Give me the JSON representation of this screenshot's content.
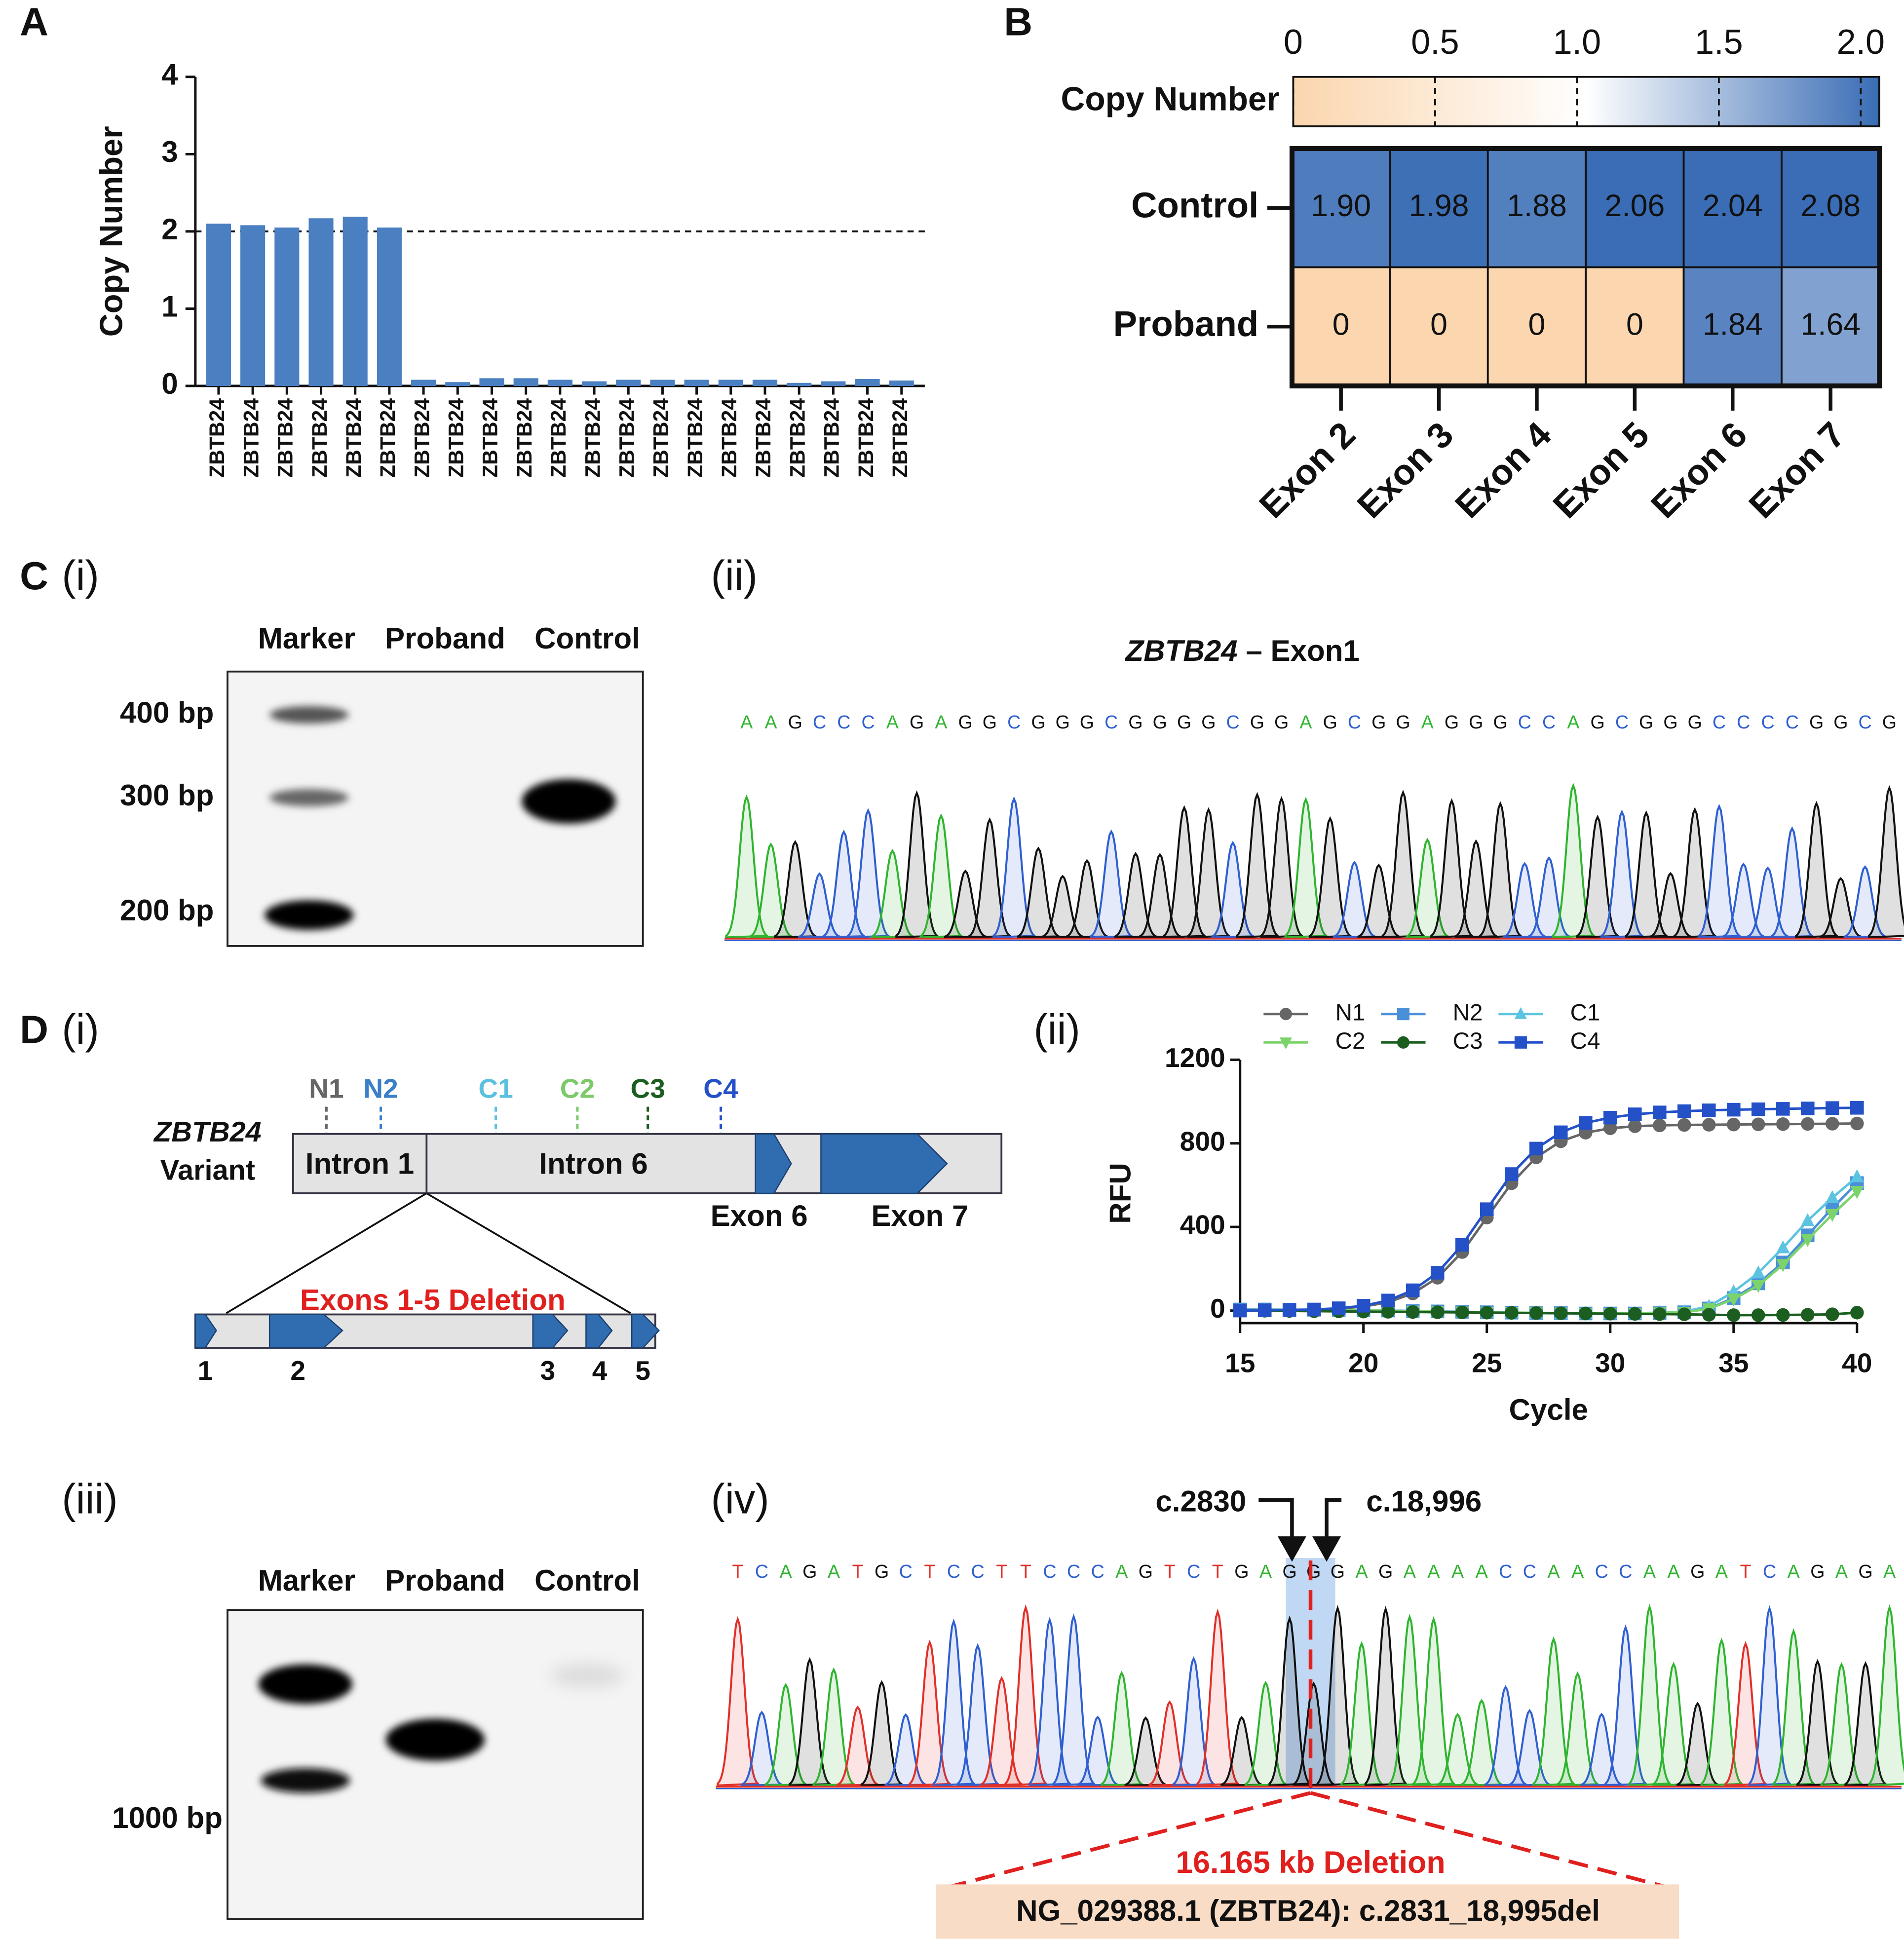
{
  "panel_labels": [
    "A",
    "B",
    "C",
    "D"
  ],
  "chart_data": [
    {
      "type": "bar",
      "ylabel": "Copy Number",
      "categories": [
        "ZBTB24",
        "ZBTB24",
        "ZBTB24",
        "ZBTB24",
        "ZBTB24",
        "ZBTB24",
        "ZBTB24",
        "ZBTB24",
        "ZBTB24",
        "ZBTB24",
        "ZBTB24",
        "ZBTB24",
        "ZBTB24",
        "ZBTB24",
        "ZBTB24",
        "ZBTB24",
        "ZBTB24",
        "ZBTB24",
        "ZBTB24",
        "ZBTB24",
        "ZBTB24"
      ],
      "values": [
        2.1,
        2.08,
        2.05,
        2.17,
        2.19,
        2.05,
        0.08,
        0.05,
        0.1,
        0.1,
        0.08,
        0.06,
        0.08,
        0.08,
        0.08,
        0.08,
        0.08,
        0.04,
        0.06,
        0.09,
        0.07
      ],
      "color": "#4a7fc1",
      "ylim": [
        0,
        4
      ],
      "yticks": [
        0,
        1,
        2,
        3,
        4
      ],
      "hline": 2
    },
    {
      "type": "heatmap",
      "legend_title": "Copy Number",
      "rows": [
        "Control",
        "Proband"
      ],
      "columns": [
        "Exon 2",
        "Exon 3",
        "Exon 4",
        "Exon 5",
        "Exon 6",
        "Exon 7"
      ],
      "values": [
        [
          1.9,
          1.98,
          1.88,
          2.06,
          2.04,
          2.08
        ],
        [
          0,
          0,
          0,
          0,
          1.84,
          1.64
        ]
      ],
      "value_labels": [
        [
          "1.90",
          "1.98",
          "1.88",
          "2.06",
          "2.04",
          "2.08"
        ],
        [
          "0",
          "0",
          "0",
          "0",
          "1.84",
          "1.64"
        ]
      ],
      "clim": [
        0,
        2
      ],
      "cticks": [
        0,
        0.5,
        {
          "value": 1,
          "label": "1.0"
        },
        1.5,
        {
          "value": 2,
          "label": "2.0"
        }
      ],
      "colorscale": [
        "#fbd6ae",
        "#ffffff",
        "#3a6db5"
      ]
    },
    {
      "type": "line",
      "xlabel": "Cycle",
      "ylabel": "RFU",
      "x": [
        15,
        16,
        17,
        18,
        19,
        20,
        21,
        22,
        23,
        24,
        25,
        26,
        27,
        28,
        29,
        30,
        31,
        32,
        33,
        34,
        35,
        36,
        37,
        38,
        39,
        40
      ],
      "xlim": [
        15,
        40
      ],
      "ylim": [
        -60,
        1200
      ],
      "xticks": [
        15,
        20,
        25,
        30,
        35,
        40
      ],
      "yticks": [
        0,
        400,
        800,
        1200
      ],
      "series": [
        {
          "name": "N1",
          "color": "#666666",
          "marker": "circle",
          "values": [
            0,
            1,
            2,
            4,
            9,
            19,
            40,
            82,
            157,
            280,
            445,
            609,
            733,
            810,
            851,
            872,
            882,
            886,
            888,
            889,
            890,
            891,
            892,
            893,
            894,
            895
          ]
        },
        {
          "name": "N2",
          "color": "#4a90d9",
          "marker": "square",
          "values": [
            5,
            5,
            4,
            4,
            3,
            2,
            0,
            -2,
            -4,
            -6,
            -8,
            -10,
            -12,
            -12,
            -14,
            -14,
            -14,
            -12,
            -8,
            10,
            60,
            130,
            230,
            360,
            490,
            610
          ]
        },
        {
          "name": "C1",
          "color": "#5cc4e0",
          "marker": "triangle",
          "values": [
            4,
            4,
            3,
            3,
            2,
            1,
            -1,
            -3,
            -5,
            -7,
            -9,
            -11,
            -12,
            -13,
            -14,
            -14,
            -13,
            -10,
            -5,
            20,
            90,
            180,
            300,
            430,
            540,
            640
          ]
        },
        {
          "name": "C2",
          "color": "#7cd36b",
          "marker": "triangle-down",
          "values": [
            3,
            3,
            3,
            2,
            2,
            1,
            -1,
            -3,
            -5,
            -7,
            -9,
            -10,
            -11,
            -12,
            -13,
            -13,
            -13,
            -11,
            -8,
            8,
            55,
            120,
            220,
            340,
            460,
            570
          ]
        },
        {
          "name": "C3",
          "color": "#1b5e20",
          "marker": "circle",
          "values": [
            0,
            -1,
            -2,
            -3,
            -4,
            -5,
            -6,
            -7,
            -8,
            -9,
            -10,
            -11,
            -12,
            -13,
            -14,
            -15,
            -16,
            -17,
            -18,
            -20,
            -22,
            -22,
            -21,
            -20,
            -18,
            -10
          ]
        },
        {
          "name": "C4",
          "color": "#2451c8",
          "marker": "square",
          "values": [
            0,
            1,
            3,
            5,
            11,
            23,
            48,
            97,
            181,
            314,
            485,
            653,
            775,
            853,
            898,
            923,
            939,
            948,
            954,
            958,
            961,
            963,
            965,
            967,
            969,
            970
          ]
        }
      ]
    }
  ],
  "panel_c": {
    "sub_labels": [
      "(i)",
      "(ii)"
    ],
    "gel": {
      "lanes": [
        "Marker",
        "Proband",
        "Control"
      ],
      "markers": [
        "400 bp",
        "300 bp",
        "200 bp"
      ]
    },
    "chromatogram": {
      "title_gene": "ZBTB24",
      "title_rest": "– Exon1",
      "sequence": "AAGCCCAGAGGCGGGCGGGGCGGAGCGGAGGGCCAGCGGGCCCCGGCG"
    }
  },
  "panel_d": {
    "sub_labels": [
      "(i)",
      "(ii)",
      "(iii)",
      "(iv)"
    ],
    "diagram": {
      "primers": [
        "N1",
        "N2",
        "C1",
        "C2",
        "C3",
        "C4"
      ],
      "gene": "ZBTB24",
      "gene_sub": "Variant",
      "regions": [
        "Intron 1",
        "Intron 6",
        "Exon 6",
        "Exon 7"
      ],
      "deletion": "Exons 1-5 Deletion",
      "exons": [
        "1",
        "2",
        "3",
        "4",
        "5"
      ]
    },
    "gel": {
      "lanes": [
        "Marker",
        "Proband",
        "Control"
      ],
      "markers": [
        "1000 bp"
      ]
    },
    "chromatogram": {
      "left_break": "c.2830",
      "right_break": "c.18,996",
      "sequence": "TCAGATGCTCCTTCCCAGTCTGAGGGAGAAAACCAACCAAGATCAGAGA",
      "deletion": "16.165 kb Deletion",
      "hgvs": "NG_029388.1 (ZBTB24): c.2831_18,995del"
    }
  }
}
